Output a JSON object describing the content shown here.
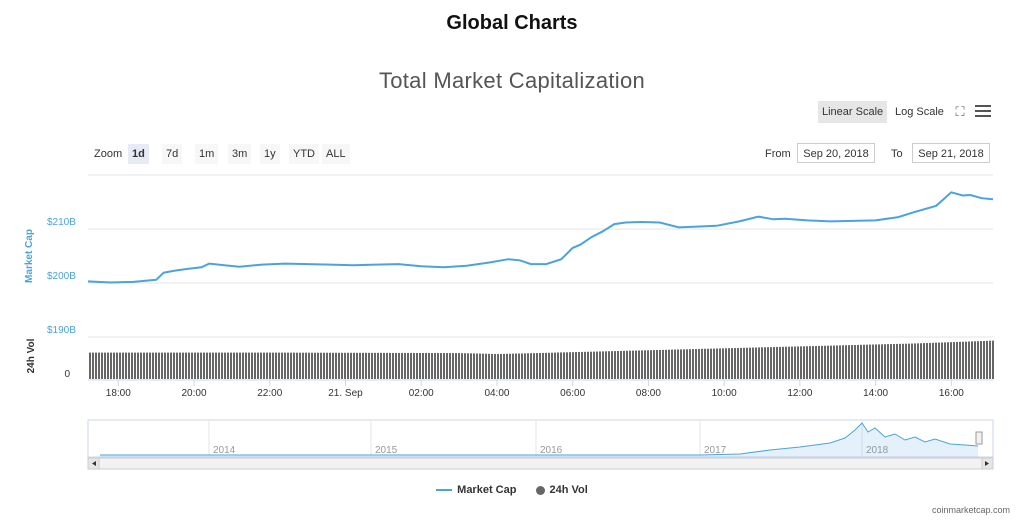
{
  "page_title": "Global Charts",
  "toolbar": {
    "linear_scale": "Linear Scale",
    "log_scale": "Log Scale"
  },
  "zoom": {
    "label": "Zoom",
    "buttons": [
      "1d",
      "7d",
      "1m",
      "3m",
      "1y",
      "YTD",
      "ALL"
    ],
    "active": "1d"
  },
  "range": {
    "from_label": "From",
    "from_value": "Sep 20, 2018",
    "to_label": "To",
    "to_value": "Sep 21, 2018"
  },
  "legend": {
    "market_cap": "Market Cap",
    "vol": "24h Vol"
  },
  "credit": "coinmarketcap.com",
  "colors": {
    "line": "#4aa3df",
    "bars": "#666666"
  },
  "chart_data": {
    "type": "line",
    "title": "Total Market Capitalization",
    "ylabel": "Market Cap",
    "ylabel2": "24h Vol",
    "y_ticks": [
      "$210B",
      "$200B",
      "$190B"
    ],
    "y_tick_values": [
      210,
      200,
      190
    ],
    "vol_tick": "0",
    "ylim": [
      187,
      218
    ],
    "x_ticks": [
      "18:00",
      "20:00",
      "22:00",
      "21. Sep",
      "02:00",
      "04:00",
      "06:00",
      "08:00",
      "10:00",
      "12:00",
      "14:00",
      "16:00"
    ],
    "x_tick_hours": [
      18,
      20,
      22,
      24,
      26,
      28,
      30,
      32,
      34,
      36,
      38,
      40
    ],
    "xlim_hours": [
      17.2,
      41.1
    ],
    "series": [
      {
        "name": "Market Cap",
        "hours": [
          17.2,
          17.8,
          18.4,
          19.0,
          19.2,
          19.5,
          19.8,
          20.2,
          20.4,
          20.8,
          21.2,
          21.8,
          22.4,
          23.0,
          23.6,
          24.2,
          24.8,
          25.4,
          26.0,
          26.6,
          27.2,
          27.8,
          28.3,
          28.6,
          28.9,
          29.3,
          29.7,
          30.0,
          30.2,
          30.5,
          30.8,
          31.1,
          31.4,
          31.8,
          32.3,
          32.8,
          33.2,
          33.8,
          34.4,
          34.9,
          35.3,
          35.6,
          36.2,
          36.8,
          37.4,
          38.0,
          38.6,
          39.0,
          39.6,
          40.0,
          40.3,
          40.5,
          40.8,
          41.1
        ],
        "values": [
          200.3,
          200.1,
          200.2,
          200.6,
          201.9,
          202.3,
          202.6,
          202.9,
          203.6,
          203.3,
          203.0,
          203.4,
          203.6,
          203.5,
          203.4,
          203.3,
          203.4,
          203.5,
          203.1,
          202.9,
          203.2,
          203.8,
          204.4,
          204.2,
          203.5,
          203.5,
          204.4,
          206.5,
          207.1,
          208.5,
          209.6,
          210.9,
          211.2,
          211.3,
          211.2,
          210.3,
          210.4,
          210.6,
          211.4,
          212.3,
          211.8,
          211.9,
          211.6,
          211.4,
          211.5,
          211.6,
          212.2,
          213.1,
          214.3,
          216.8,
          216.2,
          216.3,
          215.7,
          215.5
        ]
      },
      {
        "name": "24h Vol",
        "hours": [
          17.2,
          22.0,
          27.0,
          28.0,
          30.0,
          33.0,
          36.0,
          39.0,
          41.1
        ],
        "values": [
          0.55,
          0.55,
          0.54,
          0.52,
          0.56,
          0.62,
          0.68,
          0.74,
          0.8
        ]
      }
    ],
    "navigator": {
      "years": [
        "2014",
        "2015",
        "2016",
        "2017",
        "2018"
      ]
    }
  }
}
